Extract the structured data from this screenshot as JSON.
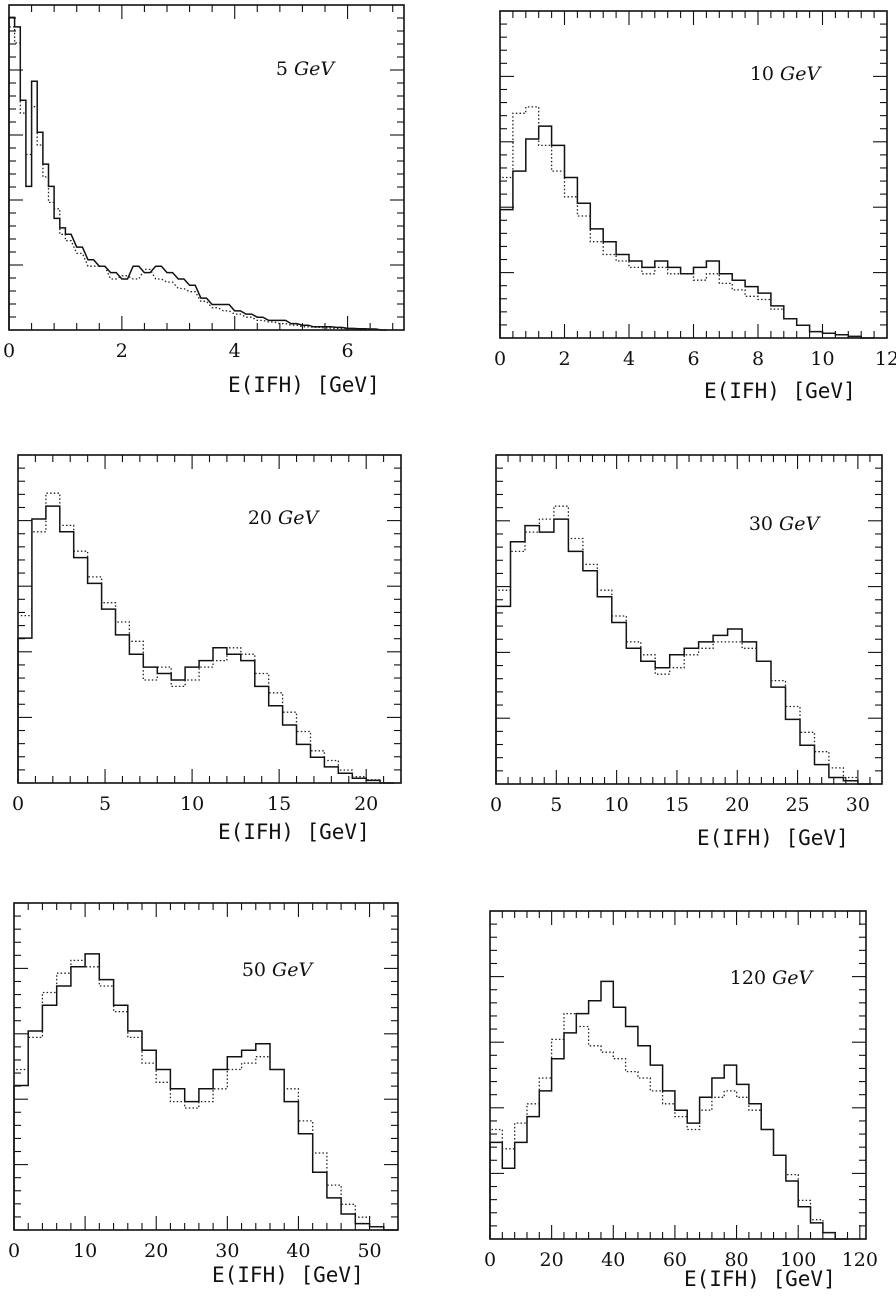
{
  "chart_data": [
    {
      "type": "histogram",
      "energy_value": "5",
      "energy_unit": "GeV",
      "xlabel": "E(IFH)  [GeV]",
      "xlim": [
        0,
        7
      ],
      "xticks": [
        0,
        2,
        4,
        6
      ],
      "ylim": [
        0,
        1
      ],
      "series": [
        {
          "name": "",
          "style": "solid",
          "x": [
            0.0,
            0.1,
            0.2,
            0.3,
            0.4,
            0.5,
            0.6,
            0.7,
            0.8,
            0.9,
            1.0,
            1.2,
            1.4,
            1.6,
            1.8,
            2.0,
            2.2,
            2.4,
            2.6,
            2.8,
            3.0,
            3.2,
            3.4,
            3.6,
            3.8,
            4.0,
            4.2,
            4.4,
            4.6,
            4.8,
            5.0,
            5.2,
            5.4,
            5.6,
            5.8,
            6.0,
            6.2,
            6.4,
            6.6
          ],
          "y": [
            0.98,
            0.95,
            0.72,
            0.45,
            0.78,
            0.62,
            0.52,
            0.45,
            0.35,
            0.32,
            0.3,
            0.26,
            0.22,
            0.2,
            0.18,
            0.16,
            0.2,
            0.18,
            0.2,
            0.18,
            0.16,
            0.14,
            0.1,
            0.08,
            0.08,
            0.06,
            0.05,
            0.04,
            0.03,
            0.03,
            0.02,
            0.015,
            0.01,
            0.01,
            0.008,
            0.005,
            0.004,
            0.003,
            0.0
          ]
        },
        {
          "name": "",
          "style": "dotted",
          "x": [
            0.0,
            0.1,
            0.2,
            0.3,
            0.4,
            0.5,
            0.6,
            0.7,
            0.8,
            0.9,
            1.0,
            1.2,
            1.4,
            1.6,
            1.8,
            2.0,
            2.2,
            2.4,
            2.6,
            2.8,
            3.0,
            3.2,
            3.4,
            3.6,
            3.8,
            4.0,
            4.2,
            4.4,
            4.6,
            4.8,
            5.0,
            5.2,
            5.4,
            5.6,
            5.8,
            6.0,
            6.2,
            6.4,
            6.6
          ],
          "y": [
            0.95,
            0.9,
            0.68,
            0.55,
            0.7,
            0.58,
            0.48,
            0.4,
            0.38,
            0.3,
            0.28,
            0.24,
            0.2,
            0.2,
            0.16,
            0.17,
            0.16,
            0.19,
            0.16,
            0.15,
            0.13,
            0.12,
            0.09,
            0.07,
            0.06,
            0.05,
            0.04,
            0.03,
            0.025,
            0.02,
            0.015,
            0.01,
            0.008,
            0.006,
            0.005,
            0.004,
            0.003,
            0.002,
            0.0
          ]
        }
      ]
    },
    {
      "type": "histogram",
      "energy_value": "10",
      "energy_unit": "GeV",
      "xlabel": "E(IFH)  [GeV]",
      "xlim": [
        0,
        12
      ],
      "xticks": [
        0,
        2,
        4,
        6,
        8,
        10,
        12
      ],
      "ylim": [
        0,
        1
      ],
      "series": [
        {
          "name": "",
          "style": "solid",
          "x": [
            0.0,
            0.4,
            0.8,
            1.2,
            1.6,
            2.0,
            2.4,
            2.8,
            3.2,
            3.6,
            4.0,
            4.4,
            4.8,
            5.2,
            5.6,
            6.0,
            6.4,
            6.8,
            7.2,
            7.6,
            8.0,
            8.4,
            8.8,
            9.2,
            9.6,
            10.0,
            10.4,
            10.8,
            11.2
          ],
          "y": [
            0.4,
            0.52,
            0.62,
            0.66,
            0.6,
            0.5,
            0.42,
            0.34,
            0.3,
            0.26,
            0.24,
            0.22,
            0.24,
            0.22,
            0.2,
            0.22,
            0.24,
            0.2,
            0.18,
            0.16,
            0.14,
            0.1,
            0.06,
            0.04,
            0.02,
            0.015,
            0.01,
            0.005,
            0.0
          ]
        },
        {
          "name": "",
          "style": "dotted",
          "x": [
            0.0,
            0.4,
            0.8,
            1.2,
            1.6,
            2.0,
            2.4,
            2.8,
            3.2,
            3.6,
            4.0,
            4.4,
            4.8,
            5.2,
            5.6,
            6.0,
            6.4,
            6.8,
            7.2,
            7.6,
            8.0,
            8.4,
            8.8,
            9.2,
            9.6,
            10.0,
            10.4,
            10.8,
            11.2
          ],
          "y": [
            0.5,
            0.7,
            0.72,
            0.6,
            0.52,
            0.44,
            0.38,
            0.3,
            0.26,
            0.24,
            0.22,
            0.2,
            0.22,
            0.2,
            0.2,
            0.18,
            0.2,
            0.17,
            0.15,
            0.13,
            0.12,
            0.09,
            0.06,
            0.04,
            0.02,
            0.015,
            0.01,
            0.005,
            0.0
          ]
        }
      ]
    },
    {
      "type": "histogram",
      "energy_value": "20",
      "energy_unit": "GeV",
      "xlabel": "E(IFH)  [GeV]",
      "xlim": [
        0,
        22
      ],
      "xticks": [
        0,
        5,
        10,
        15,
        20
      ],
      "ylim": [
        0,
        1
      ],
      "series": [
        {
          "name": "",
          "style": "solid",
          "x": [
            0,
            0.8,
            1.6,
            2.4,
            3.2,
            4.0,
            4.8,
            5.6,
            6.4,
            7.2,
            8.0,
            8.8,
            9.6,
            10.4,
            11.2,
            12.0,
            12.8,
            13.6,
            14.4,
            15.2,
            16.0,
            16.8,
            17.6,
            18.4,
            19.2,
            20.0,
            20.8
          ],
          "y": [
            0.45,
            0.82,
            0.86,
            0.78,
            0.7,
            0.62,
            0.54,
            0.46,
            0.4,
            0.36,
            0.34,
            0.32,
            0.36,
            0.38,
            0.42,
            0.4,
            0.38,
            0.3,
            0.24,
            0.18,
            0.12,
            0.08,
            0.05,
            0.03,
            0.015,
            0.008,
            0.0
          ]
        },
        {
          "name": "",
          "style": "dotted",
          "x": [
            0,
            0.8,
            1.6,
            2.4,
            3.2,
            4.0,
            4.8,
            5.6,
            6.4,
            7.2,
            8.0,
            8.8,
            9.6,
            10.4,
            11.2,
            12.0,
            12.8,
            13.6,
            14.4,
            15.2,
            16.0,
            16.8,
            17.6,
            18.4,
            19.2,
            20.0,
            20.8
          ],
          "y": [
            0.52,
            0.78,
            0.9,
            0.8,
            0.72,
            0.64,
            0.56,
            0.5,
            0.44,
            0.32,
            0.36,
            0.3,
            0.32,
            0.36,
            0.38,
            0.42,
            0.4,
            0.34,
            0.28,
            0.22,
            0.16,
            0.1,
            0.07,
            0.04,
            0.02,
            0.01,
            0.0
          ]
        }
      ]
    },
    {
      "type": "histogram",
      "energy_value": "30",
      "energy_unit": "GeV",
      "xlabel": "E(IFH)  [GeV]",
      "xlim": [
        0,
        32
      ],
      "xticks": [
        0,
        5,
        10,
        15,
        20,
        25,
        30
      ],
      "ylim": [
        0,
        1
      ],
      "series": [
        {
          "name": "",
          "style": "solid",
          "x": [
            0,
            1.2,
            2.4,
            3.6,
            4.8,
            6.0,
            7.2,
            8.4,
            9.6,
            10.8,
            12.0,
            13.2,
            14.4,
            15.6,
            16.8,
            18.0,
            19.2,
            20.4,
            21.6,
            22.8,
            24.0,
            25.2,
            26.4,
            27.6,
            28.8,
            30.0
          ],
          "y": [
            0.55,
            0.75,
            0.8,
            0.78,
            0.82,
            0.72,
            0.66,
            0.58,
            0.5,
            0.42,
            0.38,
            0.36,
            0.4,
            0.42,
            0.44,
            0.46,
            0.48,
            0.44,
            0.38,
            0.3,
            0.2,
            0.12,
            0.06,
            0.02,
            0.01,
            0.0
          ]
        },
        {
          "name": "",
          "style": "dotted",
          "x": [
            0,
            1.2,
            2.4,
            3.6,
            4.8,
            6.0,
            7.2,
            8.4,
            9.6,
            10.8,
            12.0,
            13.2,
            14.4,
            15.6,
            16.8,
            18.0,
            19.2,
            20.4,
            21.6,
            22.8,
            24.0,
            25.2,
            26.4,
            27.6,
            28.8,
            30.0
          ],
          "y": [
            0.6,
            0.72,
            0.78,
            0.82,
            0.86,
            0.76,
            0.68,
            0.6,
            0.52,
            0.44,
            0.4,
            0.34,
            0.36,
            0.4,
            0.42,
            0.44,
            0.44,
            0.42,
            0.38,
            0.32,
            0.24,
            0.16,
            0.1,
            0.05,
            0.02,
            0.0
          ]
        }
      ]
    },
    {
      "type": "histogram",
      "energy_value": "50",
      "energy_unit": "GeV",
      "xlabel": "E(IFH)  [GeV]",
      "xlim": [
        0,
        54
      ],
      "xticks": [
        0,
        10,
        20,
        30,
        40,
        50
      ],
      "ylim": [
        0,
        1
      ],
      "series": [
        {
          "name": "",
          "style": "solid",
          "x": [
            0,
            2,
            4,
            6,
            8,
            10,
            12,
            14,
            16,
            18,
            20,
            22,
            24,
            26,
            28,
            30,
            32,
            34,
            36,
            38,
            40,
            42,
            44,
            46,
            48,
            50,
            52
          ],
          "y": [
            0.45,
            0.62,
            0.7,
            0.76,
            0.82,
            0.86,
            0.78,
            0.7,
            0.62,
            0.56,
            0.5,
            0.44,
            0.4,
            0.44,
            0.5,
            0.54,
            0.56,
            0.58,
            0.5,
            0.4,
            0.3,
            0.18,
            0.1,
            0.05,
            0.02,
            0.01,
            0.0
          ]
        },
        {
          "name": "",
          "style": "dotted",
          "x": [
            0,
            2,
            4,
            6,
            8,
            10,
            12,
            14,
            16,
            18,
            20,
            22,
            24,
            26,
            28,
            30,
            32,
            34,
            36,
            38,
            40,
            42,
            44,
            46,
            48,
            50,
            52
          ],
          "y": [
            0.5,
            0.6,
            0.74,
            0.8,
            0.84,
            0.82,
            0.76,
            0.68,
            0.6,
            0.52,
            0.46,
            0.4,
            0.38,
            0.4,
            0.44,
            0.5,
            0.52,
            0.54,
            0.5,
            0.44,
            0.34,
            0.24,
            0.14,
            0.08,
            0.04,
            0.01,
            0.0
          ]
        }
      ]
    },
    {
      "type": "histogram",
      "energy_value": "120",
      "energy_unit": "GeV",
      "xlabel": "E(IFH)  [GeV]",
      "xlim": [
        0,
        122
      ],
      "xticks": [
        0,
        20,
        40,
        60,
        80,
        100,
        120
      ],
      "ylim": [
        0,
        1
      ],
      "series": [
        {
          "name": "",
          "style": "solid",
          "x": [
            0,
            4,
            8,
            12,
            16,
            20,
            24,
            28,
            32,
            36,
            40,
            44,
            48,
            52,
            56,
            60,
            64,
            68,
            72,
            76,
            80,
            84,
            88,
            92,
            96,
            100,
            104,
            108,
            112
          ],
          "y": [
            0.3,
            0.22,
            0.3,
            0.38,
            0.46,
            0.56,
            0.64,
            0.7,
            0.74,
            0.8,
            0.72,
            0.66,
            0.6,
            0.54,
            0.46,
            0.4,
            0.36,
            0.44,
            0.5,
            0.54,
            0.48,
            0.42,
            0.34,
            0.26,
            0.18,
            0.1,
            0.05,
            0.02,
            0.0
          ]
        },
        {
          "name": "",
          "style": "dotted",
          "x": [
            0,
            4,
            8,
            12,
            16,
            20,
            24,
            28,
            32,
            36,
            40,
            44,
            48,
            52,
            56,
            60,
            64,
            68,
            72,
            76,
            80,
            84,
            88,
            92,
            96,
            100,
            104,
            108,
            112
          ],
          "y": [
            0.34,
            0.28,
            0.36,
            0.42,
            0.5,
            0.62,
            0.7,
            0.66,
            0.6,
            0.58,
            0.56,
            0.52,
            0.5,
            0.46,
            0.42,
            0.38,
            0.34,
            0.4,
            0.44,
            0.46,
            0.44,
            0.4,
            0.34,
            0.26,
            0.2,
            0.12,
            0.06,
            0.02,
            0.0
          ]
        }
      ]
    }
  ]
}
